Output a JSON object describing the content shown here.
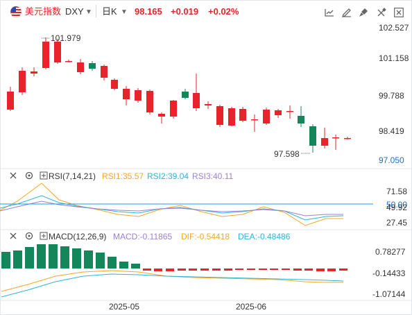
{
  "header": {
    "name": "美元指数",
    "symbol": "DXY",
    "period": "日K",
    "price": "98.165",
    "change": "+0.019",
    "change_pct": "+0.02%",
    "colors": {
      "name": "#e8232b",
      "up": "#e8232b",
      "down": "#14865b"
    },
    "toolbar_icons": [
      "indicator-settings-icon",
      "drawing-icon",
      "brush-icon",
      "eraser-icon",
      "fullscreen-icon",
      "close-icon"
    ]
  },
  "main_chart": {
    "y_ticks": [
      "102.527",
      "101.158",
      "99.788",
      "98.419",
      "97.050"
    ],
    "high_label": "101.979",
    "low_label": "97.598"
  },
  "rsi": {
    "title": "RSI(7,14,21)",
    "rsi1": "RSI1:35.57",
    "rsi2": "RSI2:39.04",
    "rsi3": "RSI3:40.11",
    "y_ticks": [
      "71.58",
      "50.00",
      "49.92",
      "27.45"
    ],
    "colors": {
      "rsi1": "#f5a623",
      "rsi2": "#29b6d8",
      "rsi3": "#9b7fd4",
      "ref": "#2196f3"
    }
  },
  "macd": {
    "title": "MACD(12,26,9)",
    "macd": "MACD:-0.11865",
    "dif": "DIF:-0.54418",
    "dea": "DEA:-0.48486",
    "y_ticks": [
      "0.78277",
      "-0.14433",
      "-1.07144"
    ],
    "colors": {
      "macd": "#9b7fd4",
      "dif": "#f5a623",
      "dea": "#29b6d8"
    }
  },
  "x_axis": {
    "labels": [
      "2025-05",
      "2025-06"
    ]
  }
}
